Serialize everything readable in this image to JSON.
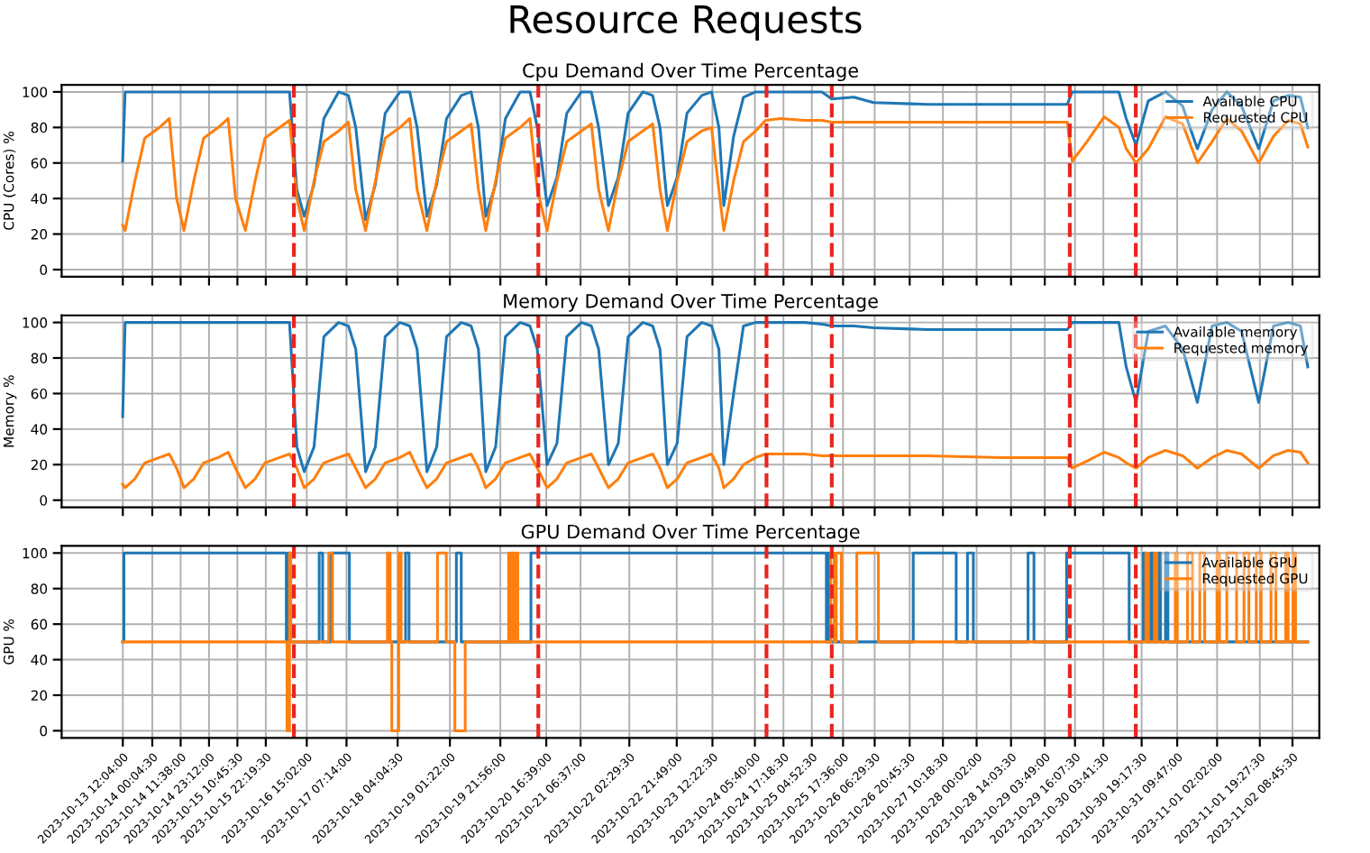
{
  "chart_data": [
    {
      "type": "line",
      "title": "Resource Requests",
      "subtitle": "Cpu Demand Over Time Percentage",
      "ylabel": "CPU (Cores) %",
      "x": [
        "2023-10-13T12:00",
        "2023-10-13T13:00",
        "2023-10-13T17:00",
        "2023-10-13T21:00",
        "2023-10-14T03:00",
        "2023-10-14T07:00",
        "2023-10-14T10:00",
        "2023-10-14T13:00",
        "2023-10-14T17:00",
        "2023-10-14T21:00",
        "2023-10-15T03:00",
        "2023-10-15T07:00",
        "2023-10-15T10:00",
        "2023-10-15T14:00",
        "2023-10-15T18:00",
        "2023-10-15T22:00",
        "2023-10-16T04:00",
        "2023-10-16T08:00",
        "2023-10-16T11:00",
        "2023-10-16T14:00",
        "2023-10-16T18:00",
        "2023-10-16T22:00",
        "2023-10-17T04:00",
        "2023-10-17T08:00",
        "2023-10-17T11:00",
        "2023-10-17T15:00",
        "2023-10-17T19:00",
        "2023-10-17T23:00",
        "2023-10-18T05:00",
        "2023-10-18T09:00",
        "2023-10-18T12:00",
        "2023-10-18T16:00",
        "2023-10-18T20:00",
        "2023-10-19T00:00",
        "2023-10-19T06:00",
        "2023-10-19T10:00",
        "2023-10-19T13:00",
        "2023-10-19T16:00",
        "2023-10-19T20:00",
        "2023-10-20T00:00",
        "2023-10-20T06:00",
        "2023-10-20T10:00",
        "2023-10-20T13:00",
        "2023-10-20T17:00",
        "2023-10-20T21:00",
        "2023-10-21T01:00",
        "2023-10-21T07:00",
        "2023-10-21T11:00",
        "2023-10-21T14:00",
        "2023-10-21T18:00",
        "2023-10-21T22:00",
        "2023-10-22T02:00",
        "2023-10-22T08:00",
        "2023-10-22T12:00",
        "2023-10-22T15:00",
        "2023-10-22T18:00",
        "2023-10-22T22:00",
        "2023-10-23T02:00",
        "2023-10-23T08:00",
        "2023-10-23T12:00",
        "2023-10-23T15:00",
        "2023-10-23T17:00",
        "2023-10-23T21:00",
        "2023-10-24T01:00",
        "2023-10-24T06:00",
        "2023-10-24T10:00",
        "2023-10-24T16:00",
        "2023-10-25T02:00",
        "2023-10-25T09:00",
        "2023-10-25T13:00",
        "2023-10-25T22:00",
        "2023-10-26T06:00",
        "2023-10-27T04:00",
        "2023-10-28T10:00",
        "2023-10-29T13:00",
        "2023-10-29T15:00",
        "2023-10-29T21:00",
        "2023-10-30T04:00",
        "2023-10-30T10:00",
        "2023-10-30T13:00",
        "2023-10-30T17:00",
        "2023-10-30T22:00",
        "2023-10-31T05:00",
        "2023-10-31T12:00",
        "2023-10-31T18:00",
        "2023-11-01T00:00",
        "2023-11-01T06:00",
        "2023-11-01T12:00",
        "2023-11-01T19:00",
        "2023-11-02T01:00",
        "2023-11-02T07:00",
        "2023-11-02T12:00",
        "2023-11-02T15:00"
      ],
      "series": [
        {
          "name": "Available CPU",
          "color": "#1f77b4",
          "values": [
            61,
            100,
            100,
            100,
            100,
            100,
            100,
            100,
            100,
            100,
            100,
            100,
            100,
            100,
            100,
            100,
            100,
            100,
            45,
            30,
            48,
            85,
            100,
            98,
            80,
            28,
            48,
            88,
            100,
            100,
            80,
            30,
            48,
            85,
            98,
            100,
            80,
            30,
            48,
            85,
            100,
            100,
            80,
            36,
            52,
            88,
            100,
            100,
            80,
            36,
            52,
            88,
            100,
            98,
            80,
            36,
            52,
            88,
            98,
            100,
            80,
            36,
            75,
            97,
            100,
            100,
            100,
            100,
            100,
            96,
            97,
            94,
            93,
            93,
            93,
            100,
            100,
            100,
            100,
            85,
            70,
            95,
            100,
            92,
            68,
            90,
            100,
            92,
            68,
            95,
            98,
            97,
            80
          ]
        },
        {
          "name": "Requested CPU",
          "color": "#ff7f0e",
          "values": [
            25,
            22,
            50,
            74,
            80,
            85,
            40,
            22,
            50,
            74,
            80,
            85,
            40,
            22,
            50,
            74,
            80,
            84,
            40,
            22,
            50,
            72,
            78,
            83,
            45,
            22,
            50,
            74,
            80,
            85,
            45,
            22,
            50,
            72,
            78,
            82,
            45,
            22,
            50,
            74,
            80,
            85,
            45,
            22,
            50,
            72,
            78,
            82,
            45,
            22,
            50,
            72,
            78,
            82,
            45,
            22,
            50,
            72,
            78,
            80,
            45,
            22,
            50,
            72,
            78,
            84,
            85,
            84,
            84,
            83,
            83,
            83,
            83,
            83,
            83,
            61,
            72,
            86,
            80,
            68,
            60,
            68,
            86,
            82,
            60,
            72,
            85,
            78,
            60,
            75,
            84,
            82,
            69
          ]
        }
      ],
      "xlim": [
        "2023-10-12T11:08",
        "2023-11-02T19:42"
      ],
      "ylim": [
        -4,
        104
      ],
      "yticks": [
        0,
        20,
        40,
        60,
        80,
        100
      ],
      "xticks": [
        {
          "value": "2023-10-13T12:04:00",
          "label": null
        },
        {
          "value": "2023-10-14T00:04:30",
          "label": null
        },
        {
          "value": "2023-10-14T11:38:00",
          "label": null
        },
        {
          "value": "2023-10-14T23:12:00",
          "label": null
        },
        {
          "value": "2023-10-15T10:45:30",
          "label": null
        },
        {
          "value": "2023-10-15T22:19:30",
          "label": null
        },
        {
          "value": "2023-10-16T15:02:00",
          "label": null
        },
        {
          "value": "2023-10-17T07:14:00",
          "label": null
        },
        {
          "value": "2023-10-18T04:04:30",
          "label": null
        },
        {
          "value": "2023-10-19T01:22:00",
          "label": null
        },
        {
          "value": "2023-10-19T21:56:00",
          "label": null
        },
        {
          "value": "2023-10-20T16:39:00",
          "label": null
        },
        {
          "value": "2023-10-21T06:37:00",
          "label": null
        },
        {
          "value": "2023-10-22T02:29:30",
          "label": null
        },
        {
          "value": "2023-10-22T21:49:00",
          "label": null
        },
        {
          "value": "2023-10-23T12:22:30",
          "label": null
        },
        {
          "value": "2023-10-24T05:40:00",
          "label": null
        },
        {
          "value": "2023-10-24T17:18:30",
          "label": null
        },
        {
          "value": "2023-10-25T04:52:30",
          "label": null
        },
        {
          "value": "2023-10-25T17:36:00",
          "label": null
        },
        {
          "value": "2023-10-26T06:29:30",
          "label": null
        },
        {
          "value": "2023-10-26T20:45:30",
          "label": null
        },
        {
          "value": "2023-10-27T10:18:30",
          "label": null
        },
        {
          "value": "2023-10-28T00:02:00",
          "label": null
        },
        {
          "value": "2023-10-28T14:03:30",
          "label": null
        },
        {
          "value": "2023-10-29T03:49:00",
          "label": null
        },
        {
          "value": "2023-10-29T16:07:30",
          "label": null
        },
        {
          "value": "2023-10-30T03:41:30",
          "label": null
        },
        {
          "value": "2023-10-30T19:17:30",
          "label": null
        },
        {
          "value": "2023-10-31T09:47:00",
          "label": null
        },
        {
          "value": "2023-11-01T02:02:00",
          "label": null
        },
        {
          "value": "2023-11-01T19:27:30",
          "label": null
        },
        {
          "value": "2023-11-02T08:45:30",
          "label": null
        }
      ],
      "ref_lines": [
        {
          "axis": "x",
          "value": "2023-10-16T09:48",
          "color": "#e8251f",
          "line_style": "dashed"
        },
        {
          "axis": "x",
          "value": "2023-10-20T13:24",
          "color": "#e8251f",
          "line_style": "dashed"
        },
        {
          "axis": "x",
          "value": "2023-10-24T10:24",
          "color": "#e8251f",
          "line_style": "dashed"
        },
        {
          "axis": "x",
          "value": "2023-10-25T13:00",
          "color": "#e8251f",
          "line_style": "dashed"
        },
        {
          "axis": "x",
          "value": "2023-10-29T14:00",
          "color": "#e8251f",
          "line_style": "dashed"
        },
        {
          "axis": "x",
          "value": "2023-10-30T16:54",
          "color": "#e8251f",
          "line_style": "dashed"
        }
      ],
      "grid": true,
      "legend": "top right",
      "tick_labels": "y"
    },
    {
      "type": "line",
      "title": "Memory Demand Over Time Percentage",
      "ylabel": "Memory %",
      "x": [
        "2023-10-13T12:00",
        "2023-10-13T13:00",
        "2023-10-13T17:00",
        "2023-10-13T21:00",
        "2023-10-14T03:00",
        "2023-10-14T07:00",
        "2023-10-14T10:00",
        "2023-10-14T13:00",
        "2023-10-14T17:00",
        "2023-10-14T21:00",
        "2023-10-15T03:00",
        "2023-10-15T07:00",
        "2023-10-15T10:00",
        "2023-10-15T14:00",
        "2023-10-15T18:00",
        "2023-10-15T22:00",
        "2023-10-16T04:00",
        "2023-10-16T08:00",
        "2023-10-16T11:00",
        "2023-10-16T14:00",
        "2023-10-16T18:00",
        "2023-10-16T22:00",
        "2023-10-17T04:00",
        "2023-10-17T08:00",
        "2023-10-17T11:00",
        "2023-10-17T15:00",
        "2023-10-17T19:00",
        "2023-10-17T23:00",
        "2023-10-18T05:00",
        "2023-10-18T09:00",
        "2023-10-18T12:00",
        "2023-10-18T16:00",
        "2023-10-18T20:00",
        "2023-10-19T00:00",
        "2023-10-19T06:00",
        "2023-10-19T10:00",
        "2023-10-19T13:00",
        "2023-10-19T16:00",
        "2023-10-19T20:00",
        "2023-10-20T00:00",
        "2023-10-20T06:00",
        "2023-10-20T10:00",
        "2023-10-20T13:00",
        "2023-10-20T17:00",
        "2023-10-20T21:00",
        "2023-10-21T01:00",
        "2023-10-21T07:00",
        "2023-10-21T11:00",
        "2023-10-21T14:00",
        "2023-10-21T18:00",
        "2023-10-21T22:00",
        "2023-10-22T02:00",
        "2023-10-22T08:00",
        "2023-10-22T12:00",
        "2023-10-22T15:00",
        "2023-10-22T18:00",
        "2023-10-22T22:00",
        "2023-10-23T02:00",
        "2023-10-23T08:00",
        "2023-10-23T12:00",
        "2023-10-23T15:00",
        "2023-10-23T17:00",
        "2023-10-23T21:00",
        "2023-10-24T01:00",
        "2023-10-24T06:00",
        "2023-10-24T10:00",
        "2023-10-24T16:00",
        "2023-10-25T02:00",
        "2023-10-25T09:00",
        "2023-10-25T13:00",
        "2023-10-25T22:00",
        "2023-10-26T06:00",
        "2023-10-27T04:00",
        "2023-10-28T10:00",
        "2023-10-29T13:00",
        "2023-10-29T15:00",
        "2023-10-29T21:00",
        "2023-10-30T04:00",
        "2023-10-30T10:00",
        "2023-10-30T13:00",
        "2023-10-30T17:00",
        "2023-10-30T22:00",
        "2023-10-31T05:00",
        "2023-10-31T12:00",
        "2023-10-31T18:00",
        "2023-11-01T00:00",
        "2023-11-01T06:00",
        "2023-11-01T12:00",
        "2023-11-01T19:00",
        "2023-11-02T01:00",
        "2023-11-02T07:00",
        "2023-11-02T12:00",
        "2023-11-02T15:00"
      ],
      "series": [
        {
          "name": "Available memory",
          "color": "#1f77b4",
          "values": [
            47,
            100,
            100,
            100,
            100,
            100,
            100,
            100,
            100,
            100,
            100,
            100,
            100,
            100,
            100,
            100,
            100,
            100,
            30,
            16,
            30,
            92,
            100,
            98,
            85,
            16,
            30,
            92,
            100,
            98,
            85,
            16,
            30,
            92,
            100,
            98,
            85,
            16,
            30,
            92,
            100,
            98,
            85,
            20,
            32,
            92,
            100,
            98,
            85,
            20,
            32,
            92,
            100,
            98,
            85,
            20,
            32,
            92,
            100,
            98,
            85,
            20,
            60,
            98,
            100,
            100,
            100,
            100,
            99,
            98,
            98,
            97,
            96,
            96,
            96,
            100,
            100,
            100,
            100,
            75,
            55,
            95,
            98,
            85,
            55,
            98,
            100,
            95,
            55,
            98,
            100,
            98,
            75
          ]
        },
        {
          "name": "Requested memory",
          "color": "#ff7f0e",
          "values": [
            9,
            7,
            12,
            21,
            24,
            26,
            18,
            7,
            12,
            21,
            24,
            27,
            18,
            7,
            12,
            21,
            24,
            26,
            18,
            7,
            12,
            21,
            24,
            26,
            18,
            7,
            12,
            21,
            24,
            27,
            18,
            7,
            12,
            21,
            24,
            26,
            18,
            7,
            12,
            21,
            24,
            26,
            18,
            7,
            12,
            21,
            24,
            26,
            18,
            7,
            12,
            21,
            24,
            26,
            18,
            7,
            12,
            21,
            24,
            26,
            18,
            7,
            12,
            20,
            24,
            26,
            26,
            26,
            25,
            25,
            25,
            25,
            25,
            24,
            24,
            18,
            22,
            27,
            24,
            21,
            18,
            24,
            28,
            25,
            18,
            24,
            28,
            26,
            18,
            25,
            28,
            27,
            21
          ]
        }
      ],
      "xlim": [
        "2023-10-12T11:08",
        "2023-11-02T19:42"
      ],
      "ylim": [
        -4,
        104
      ],
      "yticks": [
        0,
        20,
        40,
        60,
        80,
        100
      ],
      "xticks": [
        {
          "value": "2023-10-13T12:04:00",
          "label": null
        },
        {
          "value": "2023-10-14T00:04:30",
          "label": null
        },
        {
          "value": "2023-10-14T11:38:00",
          "label": null
        },
        {
          "value": "2023-10-14T23:12:00",
          "label": null
        },
        {
          "value": "2023-10-15T10:45:30",
          "label": null
        },
        {
          "value": "2023-10-15T22:19:30",
          "label": null
        },
        {
          "value": "2023-10-16T15:02:00",
          "label": null
        },
        {
          "value": "2023-10-17T07:14:00",
          "label": null
        },
        {
          "value": "2023-10-18T04:04:30",
          "label": null
        },
        {
          "value": "2023-10-19T01:22:00",
          "label": null
        },
        {
          "value": "2023-10-19T21:56:00",
          "label": null
        },
        {
          "value": "2023-10-20T16:39:00",
          "label": null
        },
        {
          "value": "2023-10-21T06:37:00",
          "label": null
        },
        {
          "value": "2023-10-22T02:29:30",
          "label": null
        },
        {
          "value": "2023-10-22T21:49:00",
          "label": null
        },
        {
          "value": "2023-10-23T12:22:30",
          "label": null
        },
        {
          "value": "2023-10-24T05:40:00",
          "label": null
        },
        {
          "value": "2023-10-24T17:18:30",
          "label": null
        },
        {
          "value": "2023-10-25T04:52:30",
          "label": null
        },
        {
          "value": "2023-10-25T17:36:00",
          "label": null
        },
        {
          "value": "2023-10-26T06:29:30",
          "label": null
        },
        {
          "value": "2023-10-26T20:45:30",
          "label": null
        },
        {
          "value": "2023-10-27T10:18:30",
          "label": null
        },
        {
          "value": "2023-10-28T00:02:00",
          "label": null
        },
        {
          "value": "2023-10-28T14:03:30",
          "label": null
        },
        {
          "value": "2023-10-29T03:49:00",
          "label": null
        },
        {
          "value": "2023-10-29T16:07:30",
          "label": null
        },
        {
          "value": "2023-10-30T03:41:30",
          "label": null
        },
        {
          "value": "2023-10-30T19:17:30",
          "label": null
        },
        {
          "value": "2023-10-31T09:47:00",
          "label": null
        },
        {
          "value": "2023-11-01T02:02:00",
          "label": null
        },
        {
          "value": "2023-11-01T19:27:30",
          "label": null
        },
        {
          "value": "2023-11-02T08:45:30",
          "label": null
        }
      ],
      "ref_lines": [
        {
          "axis": "x",
          "value": "2023-10-16T09:48",
          "color": "#e8251f",
          "line_style": "dashed"
        },
        {
          "axis": "x",
          "value": "2023-10-20T13:24",
          "color": "#e8251f",
          "line_style": "dashed"
        },
        {
          "axis": "x",
          "value": "2023-10-24T10:24",
          "color": "#e8251f",
          "line_style": "dashed"
        },
        {
          "axis": "x",
          "value": "2023-10-25T13:00",
          "color": "#e8251f",
          "line_style": "dashed"
        },
        {
          "axis": "x",
          "value": "2023-10-29T14:00",
          "color": "#e8251f",
          "line_style": "dashed"
        },
        {
          "axis": "x",
          "value": "2023-10-30T16:54",
          "color": "#e8251f",
          "line_style": "dashed"
        }
      ],
      "grid": true,
      "legend": "top right",
      "tick_labels": "y"
    },
    {
      "type": "step",
      "title": "GPU Demand Over Time Percentage",
      "ylabel": "GPU %",
      "series": [
        {
          "name": "Available GPU",
          "color": "#1f77b4",
          "x": [
            "2023-10-13T12:00",
            "2023-10-13T12:30",
            "2023-10-16T06:42",
            "2023-10-16T07:30",
            "2023-10-16T08:30",
            "2023-10-16T20:06",
            "2023-10-16T21:30",
            "2023-10-17T00:42",
            "2023-10-17T08:24",
            "2023-10-18T07:18",
            "2023-10-18T08:42",
            "2023-10-19T04:00",
            "2023-10-19T06:00",
            "2023-10-20T10:24",
            "2023-10-25T10:48",
            "2023-10-25T11:30",
            "2023-10-25T12:12",
            "2023-10-26T22:12",
            "2023-10-27T15:42",
            "2023-10-27T20:18",
            "2023-10-27T22:42",
            "2023-10-28T21:00",
            "2023-10-28T23:24",
            "2023-10-29T12:42",
            "2023-10-30T14:12",
            "2023-10-30T20:00",
            "2023-10-30T21:00",
            "2023-10-30T23:00",
            "2023-10-31T00:00",
            "2023-10-31T02:00",
            "2023-10-31T03:00",
            "2023-10-31T05:00",
            "2023-10-31T06:00",
            "2023-11-02T15:00"
          ],
          "values": [
            50,
            100,
            50,
            100,
            50,
            100,
            50,
            100,
            50,
            100,
            50,
            100,
            50,
            100,
            50,
            100,
            50,
            100,
            50,
            100,
            50,
            100,
            50,
            100,
            50,
            100,
            50,
            100,
            50,
            100,
            50,
            100,
            50,
            50
          ]
        },
        {
          "name": "Requested GPU",
          "color": "#ff7f0e",
          "x": [
            "2023-10-13T12:00",
            "2023-10-16T07:00",
            "2023-10-16T08:00",
            "2023-10-16T08:30",
            "2023-10-17T00:00",
            "2023-10-17T01:30",
            "2023-10-17T23:54",
            "2023-10-18T01:00",
            "2023-10-18T01:42",
            "2023-10-18T04:30",
            "2023-10-18T05:30",
            "2023-10-18T20:18",
            "2023-10-18T23:54",
            "2023-10-19T03:24",
            "2023-10-19T07:36",
            "2023-10-20T01:18",
            "2023-10-20T02:00",
            "2023-10-20T02:42",
            "2023-10-20T03:24",
            "2023-10-20T04:06",
            "2023-10-20T05:00",
            "2023-10-25T12:36",
            "2023-10-25T14:00",
            "2023-10-25T14:48",
            "2023-10-25T16:54",
            "2023-10-25T23:12",
            "2023-10-26T08:00",
            "2023-10-30T21:00",
            "2023-10-30T22:00",
            "2023-10-31T00:30",
            "2023-10-31T01:30",
            "2023-10-31T09:00",
            "2023-10-31T09:48",
            "2023-10-31T14:00",
            "2023-10-31T16:00",
            "2023-10-31T19:00",
            "2023-10-31T21:00",
            "2023-11-01T02:00",
            "2023-11-01T03:00",
            "2023-11-01T06:00",
            "2023-11-01T10:00",
            "2023-11-01T13:00",
            "2023-11-01T15:00",
            "2023-11-01T18:00",
            "2023-11-01T20:00",
            "2023-11-02T00:00",
            "2023-11-02T02:00",
            "2023-11-02T06:00",
            "2023-11-02T07:00",
            "2023-11-02T09:00",
            "2023-11-02T10:00",
            "2023-11-02T15:00"
          ],
          "values": [
            50,
            0,
            100,
            50,
            100,
            50,
            100,
            50,
            0,
            100,
            50,
            100,
            50,
            0,
            50,
            100,
            50,
            100,
            50,
            100,
            50,
            100,
            50,
            100,
            50,
            100,
            50,
            100,
            50,
            100,
            50,
            100,
            50,
            100,
            50,
            100,
            50,
            100,
            50,
            100,
            50,
            100,
            50,
            100,
            50,
            100,
            50,
            100,
            50,
            100,
            50,
            50
          ]
        }
      ],
      "xlim": [
        "2023-10-12T11:08",
        "2023-11-02T19:42"
      ],
      "ylim": [
        -4,
        104
      ],
      "yticks": [
        0,
        20,
        40,
        60,
        80,
        100
      ],
      "xticks": [
        {
          "value": "2023-10-13T12:04:00",
          "label": "2023-10-13 12:04:00"
        },
        {
          "value": "2023-10-14T00:04:30",
          "label": "2023-10-14 00:04:30"
        },
        {
          "value": "2023-10-14T11:38:00",
          "label": "2023-10-14 11:38:00"
        },
        {
          "value": "2023-10-14T23:12:00",
          "label": "2023-10-14 23:12:00"
        },
        {
          "value": "2023-10-15T10:45:30",
          "label": "2023-10-15 10:45:30"
        },
        {
          "value": "2023-10-15T22:19:30",
          "label": "2023-10-15 22:19:30"
        },
        {
          "value": "2023-10-16T15:02:00",
          "label": "2023-10-16 15:02:00"
        },
        {
          "value": "2023-10-17T07:14:00",
          "label": "2023-10-17 07:14:00"
        },
        {
          "value": "2023-10-18T04:04:30",
          "label": "2023-10-18 04:04:30"
        },
        {
          "value": "2023-10-19T01:22:00",
          "label": "2023-10-19 01:22:00"
        },
        {
          "value": "2023-10-19T21:56:00",
          "label": "2023-10-19 21:56:00"
        },
        {
          "value": "2023-10-20T16:39:00",
          "label": "2023-10-20 16:39:00"
        },
        {
          "value": "2023-10-21T06:37:00",
          "label": "2023-10-21 06:37:00"
        },
        {
          "value": "2023-10-22T02:29:30",
          "label": "2023-10-22 02:29:30"
        },
        {
          "value": "2023-10-22T21:49:00",
          "label": "2023-10-22 21:49:00"
        },
        {
          "value": "2023-10-23T12:22:30",
          "label": "2023-10-23 12:22:30"
        },
        {
          "value": "2023-10-24T05:40:00",
          "label": "2023-10-24 05:40:00"
        },
        {
          "value": "2023-10-24T17:18:30",
          "label": "2023-10-24 17:18:30"
        },
        {
          "value": "2023-10-25T04:52:30",
          "label": "2023-10-25 04:52:30"
        },
        {
          "value": "2023-10-25T17:36:00",
          "label": "2023-10-25 17:36:00"
        },
        {
          "value": "2023-10-26T06:29:30",
          "label": "2023-10-26 06:29:30"
        },
        {
          "value": "2023-10-26T20:45:30",
          "label": "2023-10-26 20:45:30"
        },
        {
          "value": "2023-10-27T10:18:30",
          "label": "2023-10-27 10:18:30"
        },
        {
          "value": "2023-10-28T00:02:00",
          "label": "2023-10-28 00:02:00"
        },
        {
          "value": "2023-10-28T14:03:30",
          "label": "2023-10-28 14:03:30"
        },
        {
          "value": "2023-10-29T03:49:00",
          "label": "2023-10-29 03:49:00"
        },
        {
          "value": "2023-10-29T16:07:30",
          "label": "2023-10-29 16:07:30"
        },
        {
          "value": "2023-10-30T03:41:30",
          "label": "2023-10-30 03:41:30"
        },
        {
          "value": "2023-10-30T19:17:30",
          "label": "2023-10-30 19:17:30"
        },
        {
          "value": "2023-10-31T09:47:00",
          "label": "2023-10-31 09:47:00"
        },
        {
          "value": "2023-11-01T02:02:00",
          "label": "2023-11-01 02:02:00"
        },
        {
          "value": "2023-11-01T19:27:30",
          "label": "2023-11-01 19:27:30"
        },
        {
          "value": "2023-11-02T08:45:30",
          "label": "2023-11-02 08:45:30"
        }
      ],
      "ref_lines": [
        {
          "axis": "x",
          "value": "2023-10-16T09:48",
          "color": "#e8251f",
          "line_style": "dashed"
        },
        {
          "axis": "x",
          "value": "2023-10-20T13:24",
          "color": "#e8251f",
          "line_style": "dashed"
        },
        {
          "axis": "x",
          "value": "2023-10-24T10:24",
          "color": "#e8251f",
          "line_style": "dashed"
        },
        {
          "axis": "x",
          "value": "2023-10-25T13:00",
          "color": "#e8251f",
          "line_style": "dashed"
        },
        {
          "axis": "x",
          "value": "2023-10-29T14:00",
          "color": "#e8251f",
          "line_style": "dashed"
        },
        {
          "axis": "x",
          "value": "2023-10-30T16:54",
          "color": "#e8251f",
          "line_style": "dashed"
        }
      ],
      "grid": true,
      "legend": "top right"
    }
  ]
}
